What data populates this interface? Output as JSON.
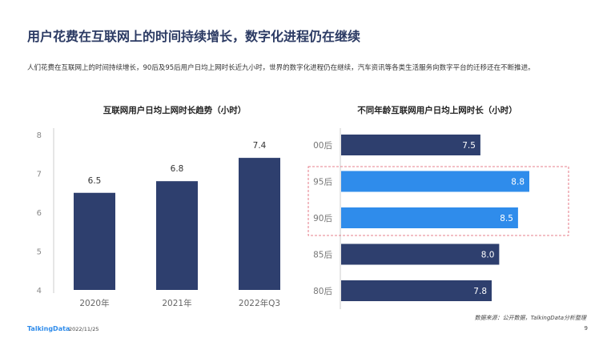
{
  "header": {
    "title": "用户花费在互联网上的时间持续增长，数字化进程仍在继续",
    "summary": "人们花费在互联网上的时间持续增长，90后及95后用户日均上网时长近九小时，世界的数字化进程仍在继续，汽车资讯等各类生活服务向数字平台的迁移还在不断推进。"
  },
  "chart_data": [
    {
      "type": "bar",
      "title": "互联网用户日均上网时长趋势（小时）",
      "categories": [
        "2020年",
        "2021年",
        "2022年Q3"
      ],
      "values": [
        6.5,
        6.8,
        7.4
      ],
      "ylim": [
        4,
        8
      ],
      "yticks": [
        "4",
        "5",
        "6",
        "7",
        "8"
      ],
      "labels": [
        "6.5",
        "6.8",
        "7.4"
      ],
      "color": "#2e3f6e",
      "grid": false
    },
    {
      "type": "bar",
      "orientation": "horizontal",
      "title": "不同年龄互联网用户日均上网时长（小时）",
      "categories": [
        "00后",
        "95后",
        "90后",
        "85后",
        "80后"
      ],
      "values": [
        7.5,
        8.8,
        8.5,
        8.0,
        7.8
      ],
      "labels": [
        "7.5",
        "8.8",
        "8.5",
        "8.0",
        "7.8"
      ],
      "highlighted": [
        "95后",
        "90后"
      ],
      "color": "#2e3f6e",
      "highlight_color": "#2f8ceb",
      "highlight_box_color": "#e05a6a",
      "grid": false
    }
  ],
  "footer": {
    "source": "数据来源：公开数据，TalkingData分析整理",
    "brand": "TalkingData",
    "date": "2022/11/25",
    "page": "9"
  }
}
